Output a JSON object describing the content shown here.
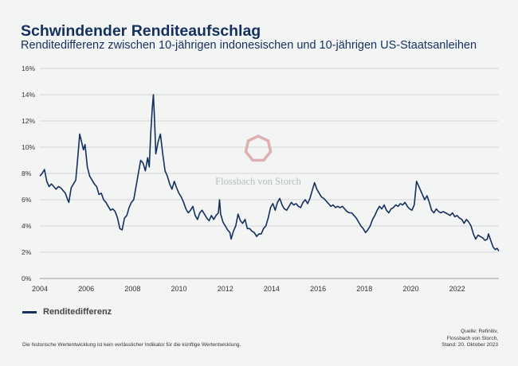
{
  "header": {
    "title": "Schwindender Renditeaufschlag",
    "subtitle": "Renditedifferenz zwischen 10-jährigen indonesischen und 10-jährigen US-Staatsanleihen"
  },
  "watermark": {
    "text": "Flossbach von Storch",
    "color": "#d9a3a6"
  },
  "legend": {
    "label": "Renditedifferenz",
    "color": "#14305e"
  },
  "footer": {
    "disclaimer": "Die historische Wertentwicklung ist kein verlässlicher Indikator für die künftige Wertentwicklung.",
    "source_line1": "Quelle: Refinitiv,",
    "source_line2": "Flossbach von Storch,",
    "source_line3": "Stand: 20. Oktober 2023"
  },
  "chart_data": {
    "type": "line",
    "title": "Schwindender Renditeaufschlag",
    "xlabel": "",
    "ylabel": "",
    "xlim": [
      2004.0,
      2023.8
    ],
    "ylim": [
      0,
      16
    ],
    "grid": true,
    "xticks": [
      2004,
      2006,
      2008,
      2010,
      2012,
      2014,
      2016,
      2018,
      2020,
      2022
    ],
    "xtick_labels": [
      "2004",
      "2006",
      "2008",
      "2010",
      "2012",
      "2014",
      "2016",
      "2018",
      "2020",
      "2022"
    ],
    "yticks": [
      0,
      2,
      4,
      6,
      8,
      10,
      12,
      14,
      16
    ],
    "ytick_labels": [
      "0%",
      "2%",
      "4%",
      "6%",
      "8%",
      "10%",
      "12%",
      "14%",
      "16%"
    ],
    "series": [
      {
        "name": "Renditedifferenz",
        "color": "#14305e",
        "points": [
          [
            2004.0,
            7.8
          ],
          [
            2004.1,
            8.0
          ],
          [
            2004.2,
            8.3
          ],
          [
            2004.3,
            7.4
          ],
          [
            2004.4,
            7.0
          ],
          [
            2004.5,
            7.2
          ],
          [
            2004.6,
            7.0
          ],
          [
            2004.7,
            6.8
          ],
          [
            2004.8,
            7.0
          ],
          [
            2004.9,
            6.9
          ],
          [
            2005.0,
            6.7
          ],
          [
            2005.1,
            6.5
          ],
          [
            2005.2,
            6.0
          ],
          [
            2005.25,
            5.8
          ],
          [
            2005.35,
            6.9
          ],
          [
            2005.45,
            7.2
          ],
          [
            2005.55,
            7.5
          ],
          [
            2005.65,
            9.5
          ],
          [
            2005.72,
            11.0
          ],
          [
            2005.8,
            10.4
          ],
          [
            2005.88,
            9.8
          ],
          [
            2005.95,
            10.2
          ],
          [
            2006.05,
            8.5
          ],
          [
            2006.15,
            7.8
          ],
          [
            2006.25,
            7.5
          ],
          [
            2006.35,
            7.2
          ],
          [
            2006.45,
            7.0
          ],
          [
            2006.55,
            6.4
          ],
          [
            2006.65,
            6.5
          ],
          [
            2006.75,
            6.0
          ],
          [
            2006.85,
            5.8
          ],
          [
            2006.95,
            5.5
          ],
          [
            2007.05,
            5.2
          ],
          [
            2007.15,
            5.3
          ],
          [
            2007.25,
            5.1
          ],
          [
            2007.35,
            4.6
          ],
          [
            2007.45,
            3.8
          ],
          [
            2007.55,
            3.7
          ],
          [
            2007.65,
            4.6
          ],
          [
            2007.75,
            4.8
          ],
          [
            2007.85,
            5.4
          ],
          [
            2007.95,
            5.8
          ],
          [
            2008.05,
            6.0
          ],
          [
            2008.15,
            7.0
          ],
          [
            2008.25,
            8.0
          ],
          [
            2008.35,
            9.0
          ],
          [
            2008.45,
            8.8
          ],
          [
            2008.55,
            8.2
          ],
          [
            2008.65,
            9.2
          ],
          [
            2008.72,
            8.5
          ],
          [
            2008.78,
            11.0
          ],
          [
            2008.85,
            13.0
          ],
          [
            2008.9,
            14.0
          ],
          [
            2008.95,
            12.0
          ],
          [
            2009.0,
            9.5
          ],
          [
            2009.1,
            10.4
          ],
          [
            2009.2,
            11.0
          ],
          [
            2009.3,
            9.5
          ],
          [
            2009.4,
            8.2
          ],
          [
            2009.5,
            7.8
          ],
          [
            2009.6,
            7.2
          ],
          [
            2009.7,
            6.8
          ],
          [
            2009.8,
            7.4
          ],
          [
            2009.9,
            6.9
          ],
          [
            2010.0,
            6.5
          ],
          [
            2010.1,
            6.2
          ],
          [
            2010.2,
            5.8
          ],
          [
            2010.3,
            5.3
          ],
          [
            2010.4,
            5.0
          ],
          [
            2010.5,
            5.2
          ],
          [
            2010.6,
            5.5
          ],
          [
            2010.7,
            4.8
          ],
          [
            2010.8,
            4.5
          ],
          [
            2010.9,
            5.0
          ],
          [
            2011.0,
            5.2
          ],
          [
            2011.1,
            4.9
          ],
          [
            2011.2,
            4.6
          ],
          [
            2011.3,
            4.4
          ],
          [
            2011.4,
            4.8
          ],
          [
            2011.5,
            4.5
          ],
          [
            2011.6,
            4.8
          ],
          [
            2011.7,
            5.0
          ],
          [
            2011.75,
            6.0
          ],
          [
            2011.8,
            4.9
          ],
          [
            2011.9,
            4.3
          ],
          [
            2012.0,
            4.0
          ],
          [
            2012.1,
            3.7
          ],
          [
            2012.2,
            3.5
          ],
          [
            2012.25,
            3.0
          ],
          [
            2012.35,
            3.6
          ],
          [
            2012.45,
            4.0
          ],
          [
            2012.55,
            4.9
          ],
          [
            2012.65,
            4.4
          ],
          [
            2012.75,
            4.2
          ],
          [
            2012.85,
            4.5
          ],
          [
            2012.95,
            3.8
          ],
          [
            2013.05,
            3.8
          ],
          [
            2013.15,
            3.6
          ],
          [
            2013.25,
            3.5
          ],
          [
            2013.35,
            3.2
          ],
          [
            2013.45,
            3.4
          ],
          [
            2013.55,
            3.4
          ],
          [
            2013.65,
            3.8
          ],
          [
            2013.75,
            4.0
          ],
          [
            2013.85,
            4.6
          ],
          [
            2013.95,
            5.4
          ],
          [
            2014.05,
            5.7
          ],
          [
            2014.15,
            5.2
          ],
          [
            2014.25,
            5.8
          ],
          [
            2014.35,
            6.1
          ],
          [
            2014.45,
            5.6
          ],
          [
            2014.55,
            5.3
          ],
          [
            2014.65,
            5.2
          ],
          [
            2014.75,
            5.5
          ],
          [
            2014.85,
            5.8
          ],
          [
            2014.95,
            5.6
          ],
          [
            2015.05,
            5.7
          ],
          [
            2015.15,
            5.5
          ],
          [
            2015.25,
            5.4
          ],
          [
            2015.35,
            5.8
          ],
          [
            2015.45,
            6.0
          ],
          [
            2015.55,
            5.7
          ],
          [
            2015.65,
            6.1
          ],
          [
            2015.75,
            6.7
          ],
          [
            2015.85,
            7.3
          ],
          [
            2015.95,
            6.8
          ],
          [
            2016.05,
            6.5
          ],
          [
            2016.15,
            6.2
          ],
          [
            2016.25,
            6.1
          ],
          [
            2016.35,
            5.9
          ],
          [
            2016.45,
            5.7
          ],
          [
            2016.55,
            5.5
          ],
          [
            2016.65,
            5.6
          ],
          [
            2016.75,
            5.4
          ],
          [
            2016.85,
            5.5
          ],
          [
            2016.95,
            5.4
          ],
          [
            2017.05,
            5.5
          ],
          [
            2017.15,
            5.3
          ],
          [
            2017.25,
            5.1
          ],
          [
            2017.35,
            5.0
          ],
          [
            2017.45,
            5.0
          ],
          [
            2017.55,
            4.8
          ],
          [
            2017.65,
            4.6
          ],
          [
            2017.75,
            4.3
          ],
          [
            2017.85,
            4.0
          ],
          [
            2017.95,
            3.8
          ],
          [
            2018.05,
            3.5
          ],
          [
            2018.15,
            3.7
          ],
          [
            2018.25,
            4.0
          ],
          [
            2018.35,
            4.5
          ],
          [
            2018.45,
            4.8
          ],
          [
            2018.55,
            5.2
          ],
          [
            2018.65,
            5.5
          ],
          [
            2018.75,
            5.3
          ],
          [
            2018.85,
            5.6
          ],
          [
            2018.95,
            5.2
          ],
          [
            2019.05,
            5.0
          ],
          [
            2019.15,
            5.3
          ],
          [
            2019.25,
            5.4
          ],
          [
            2019.35,
            5.6
          ],
          [
            2019.45,
            5.5
          ],
          [
            2019.55,
            5.7
          ],
          [
            2019.65,
            5.6
          ],
          [
            2019.75,
            5.8
          ],
          [
            2019.85,
            5.5
          ],
          [
            2019.95,
            5.3
          ],
          [
            2020.05,
            5.2
          ],
          [
            2020.15,
            5.6
          ],
          [
            2020.25,
            7.4
          ],
          [
            2020.3,
            7.2
          ],
          [
            2020.4,
            6.8
          ],
          [
            2020.5,
            6.4
          ],
          [
            2020.6,
            6.0
          ],
          [
            2020.7,
            6.3
          ],
          [
            2020.8,
            5.8
          ],
          [
            2020.9,
            5.2
          ],
          [
            2021.0,
            5.0
          ],
          [
            2021.1,
            5.3
          ],
          [
            2021.2,
            5.1
          ],
          [
            2021.3,
            5.0
          ],
          [
            2021.4,
            5.1
          ],
          [
            2021.5,
            5.0
          ],
          [
            2021.6,
            4.9
          ],
          [
            2021.7,
            4.8
          ],
          [
            2021.8,
            5.0
          ],
          [
            2021.9,
            4.7
          ],
          [
            2022.0,
            4.8
          ],
          [
            2022.1,
            4.6
          ],
          [
            2022.2,
            4.5
          ],
          [
            2022.3,
            4.2
          ],
          [
            2022.4,
            4.5
          ],
          [
            2022.5,
            4.3
          ],
          [
            2022.6,
            4.0
          ],
          [
            2022.7,
            3.4
          ],
          [
            2022.8,
            3.0
          ],
          [
            2022.9,
            3.3
          ],
          [
            2023.0,
            3.2
          ],
          [
            2023.1,
            3.1
          ],
          [
            2023.2,
            2.9
          ],
          [
            2023.3,
            3.0
          ],
          [
            2023.35,
            3.4
          ],
          [
            2023.45,
            2.9
          ],
          [
            2023.55,
            2.4
          ],
          [
            2023.65,
            2.2
          ],
          [
            2023.72,
            2.3
          ],
          [
            2023.8,
            2.1
          ]
        ]
      }
    ]
  }
}
